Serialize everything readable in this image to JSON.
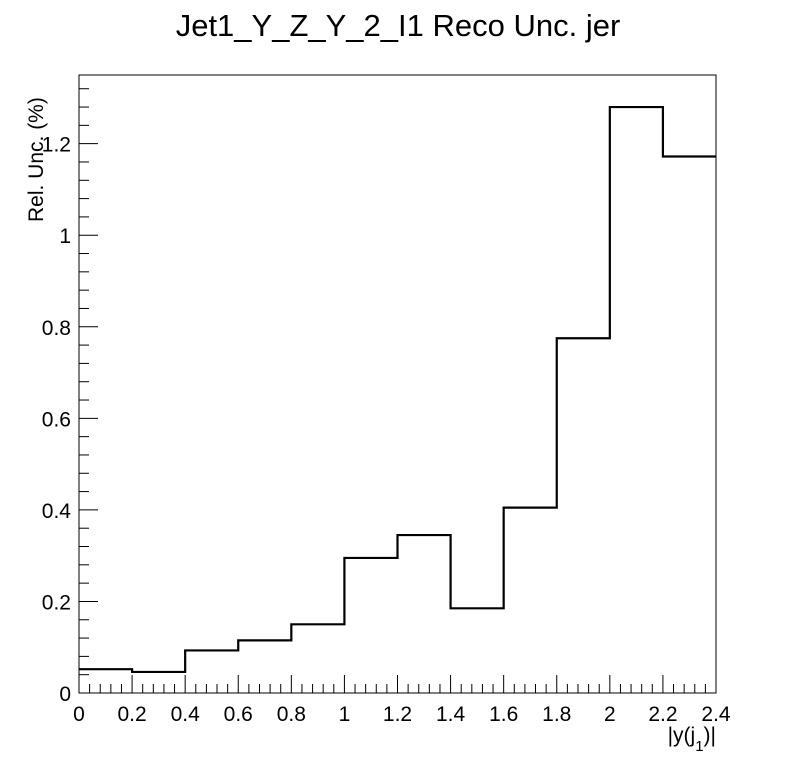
{
  "chart_data": {
    "type": "histogram",
    "title": "Jet1_Y_Z_Y_2_I1 Reco Unc. jer",
    "xlabel": "|y(j_1)|",
    "xlabel_main": "|y(j",
    "xlabel_sub": "1",
    "xlabel_end": ")|",
    "ylabel": "Rel. Unc. (%)",
    "xlim": [
      0,
      2.4
    ],
    "ylim": [
      0,
      1.35
    ],
    "bin_edges": [
      0,
      0.2,
      0.4,
      0.6,
      0.8,
      1.0,
      1.2,
      1.4,
      1.6,
      1.8,
      2.0,
      2.2,
      2.4
    ],
    "values": [
      0.052,
      0.046,
      0.093,
      0.115,
      0.15,
      0.295,
      0.345,
      0.185,
      0.405,
      0.775,
      1.28,
      1.172
    ],
    "x_ticks": [
      0,
      0.2,
      0.4,
      0.6,
      0.8,
      1,
      1.2,
      1.4,
      1.6,
      1.8,
      2,
      2.2,
      2.4
    ],
    "x_tick_labels": [
      "0",
      "0.2",
      "0.4",
      "0.6",
      "0.8",
      "1",
      "1.2",
      "1.4",
      "1.6",
      "1.8",
      "2",
      "2.2",
      "2.4"
    ],
    "y_ticks": [
      0,
      0.2,
      0.4,
      0.6,
      0.8,
      1,
      1.2
    ],
    "y_tick_labels": [
      "0",
      "0.2",
      "0.4",
      "0.6",
      "0.8",
      "1",
      "1.2"
    ],
    "grid": false,
    "legend": "none",
    "line_color": "#000000"
  }
}
